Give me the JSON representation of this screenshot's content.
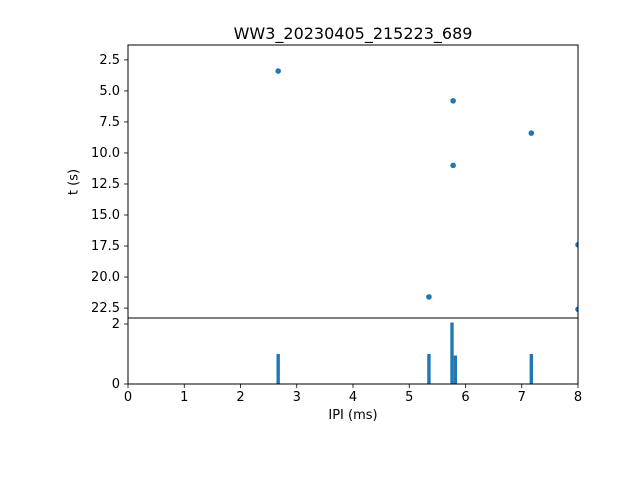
{
  "figure": {
    "background": "#ffffff",
    "accent_color": "#1f77b4"
  },
  "chart_data": [
    {
      "type": "scatter",
      "title": "WW3_20230405_215223_689",
      "ylabel": "t (s)",
      "xlim": [
        0,
        8
      ],
      "y_top_value": 1.3,
      "y_bottom_value": 23.3,
      "y_inverted": true,
      "grid": false,
      "legend": "none",
      "marker_color": "#1f77b4",
      "yticks": [
        {
          "value": 2.5,
          "label": "2.5"
        },
        {
          "value": 5.0,
          "label": "5.0"
        },
        {
          "value": 7.5,
          "label": "7.5"
        },
        {
          "value": 10.0,
          "label": "10.0"
        },
        {
          "value": 12.5,
          "label": "12.5"
        },
        {
          "value": 15.0,
          "label": "15.0"
        },
        {
          "value": 17.5,
          "label": "17.5"
        },
        {
          "value": 20.0,
          "label": "20.0"
        },
        {
          "value": 22.5,
          "label": "22.5"
        }
      ],
      "points": [
        {
          "x": 2.67,
          "y": 3.4
        },
        {
          "x": 5.78,
          "y": 5.8
        },
        {
          "x": 7.17,
          "y": 8.4
        },
        {
          "x": 5.78,
          "y": 11.0
        },
        {
          "x": 5.35,
          "y": 21.6
        },
        {
          "x": 8.0,
          "y": 17.4
        },
        {
          "x": 8.0,
          "y": 22.6
        }
      ]
    },
    {
      "type": "bar",
      "xlabel": "IPI (ms)",
      "xlim": [
        0,
        8
      ],
      "ylim": [
        0,
        2.2
      ],
      "grid": false,
      "bar_color": "#1f77b4",
      "bar_width_ms": 0.06,
      "yticks": [
        {
          "value": 0,
          "label": "0"
        },
        {
          "value": 2,
          "label": "2"
        }
      ],
      "xticks": [
        {
          "value": 0,
          "label": "0"
        },
        {
          "value": 1,
          "label": "1"
        },
        {
          "value": 2,
          "label": "2"
        },
        {
          "value": 3,
          "label": "3"
        },
        {
          "value": 4,
          "label": "4"
        },
        {
          "value": 5,
          "label": "5"
        },
        {
          "value": 6,
          "label": "6"
        },
        {
          "value": 7,
          "label": "7"
        },
        {
          "value": 8,
          "label": "8"
        }
      ],
      "bars": [
        {
          "x": 2.67,
          "height": 1.0
        },
        {
          "x": 5.35,
          "height": 1.0
        },
        {
          "x": 5.76,
          "height": 2.05
        },
        {
          "x": 5.82,
          "height": 0.95
        },
        {
          "x": 7.17,
          "height": 1.0
        }
      ]
    }
  ]
}
